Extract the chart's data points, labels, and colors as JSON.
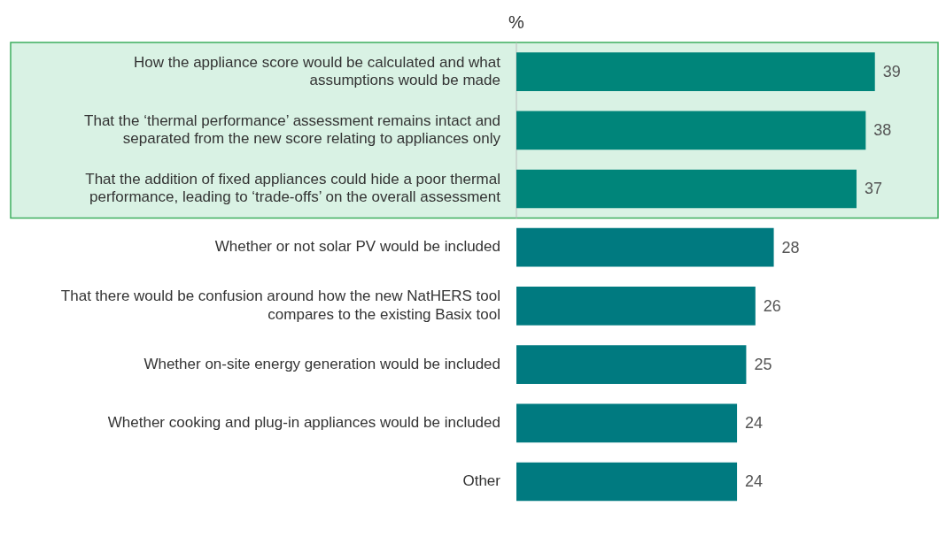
{
  "chart_data": {
    "type": "bar",
    "orientation": "horizontal",
    "title": "%",
    "categories": [
      "How the appliance score would be calculated and what assumptions would be made",
      "That the ‘thermal performance’ assessment remains intact and separated from the new score relating to appliances only",
      "That the addition of fixed appliances could hide a poor thermal performance, leading to ‘trade-offs’ on the overall assessment",
      "Whether or not solar PV would be included",
      "That there would be confusion around how the new NatHERS tool compares to the existing Basix tool",
      "Whether on-site energy generation would be included",
      "Whether cooking and plug-in appliances would be included",
      "Other"
    ],
    "values": [
      39,
      38,
      37,
      28,
      26,
      25,
      24,
      24
    ],
    "colors": [
      "#00857a",
      "#00857a",
      "#00857a",
      "#007a80",
      "#007a80",
      "#007a80",
      "#007a80",
      "#007a80"
    ],
    "data_labels": true,
    "grid": false,
    "legend": false,
    "bands": [
      {
        "axis": "y",
        "from": "How the appliance score would be calculated and what assumptions would be made",
        "to": "That the addition of fixed appliances could hide a poor thermal performance, leading to ‘trade-offs’ on the overall assessment",
        "color": "#d9f2e4"
      }
    ]
  }
}
